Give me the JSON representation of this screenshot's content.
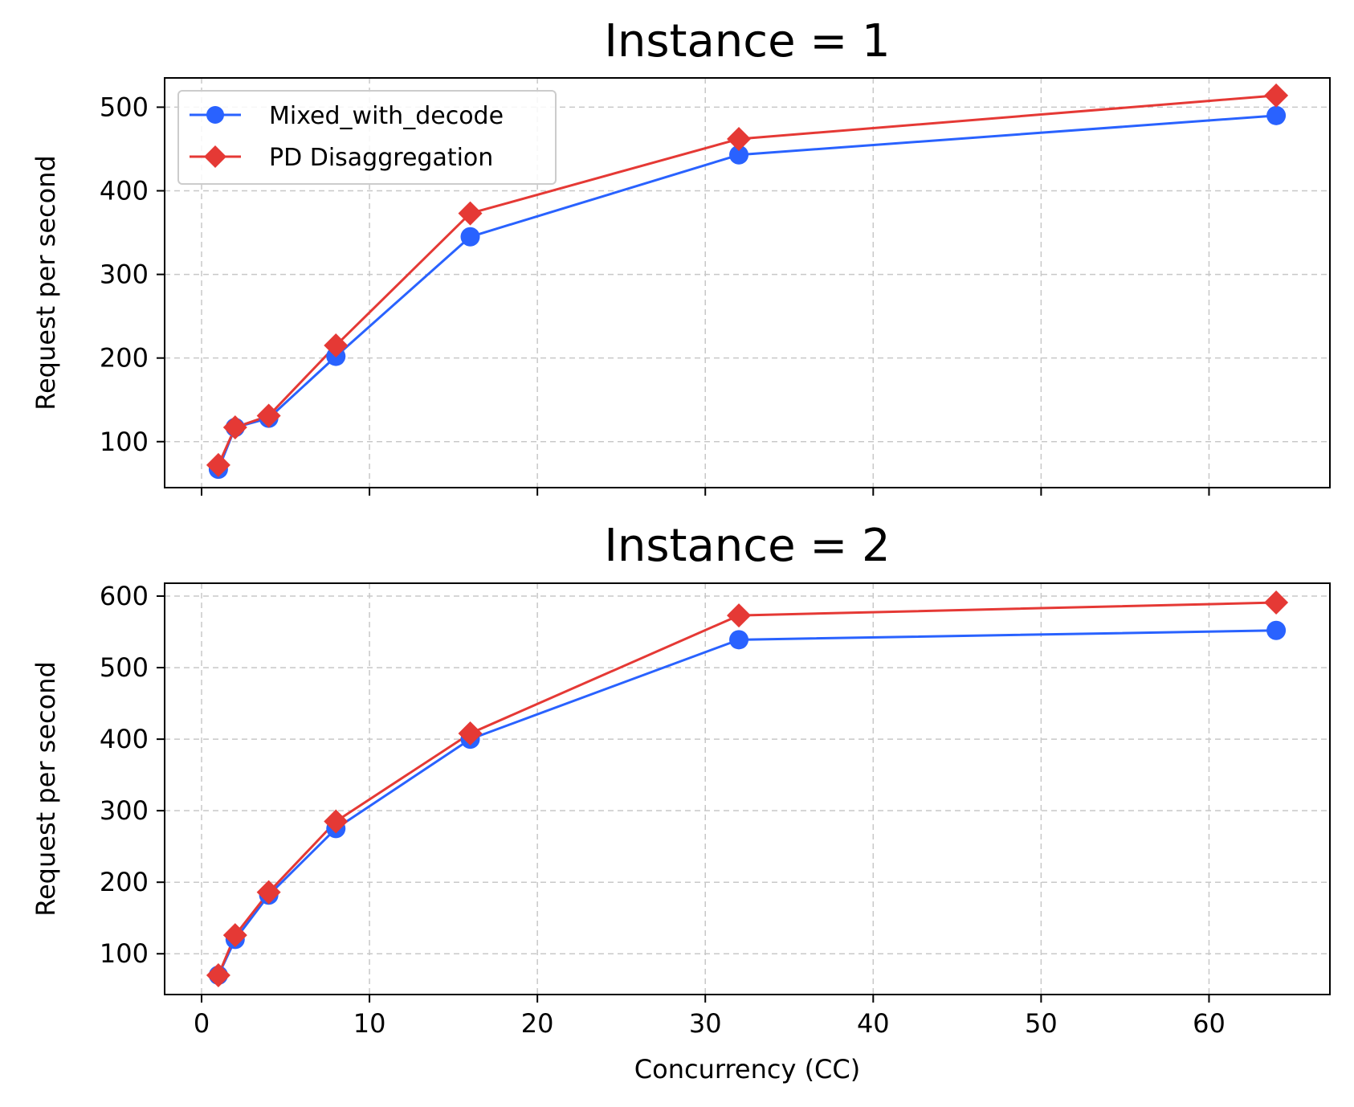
{
  "chart_data": [
    {
      "type": "line",
      "title": "Instance = 1",
      "xlabel": "",
      "ylabel": "Request per second",
      "xlim": [
        -2.2,
        67.2
      ],
      "ylim": [
        45,
        535
      ],
      "xticks": [
        0,
        10,
        20,
        30,
        40,
        50,
        60
      ],
      "xtick_labels_visible": false,
      "yticks": [
        100,
        200,
        300,
        400,
        500
      ],
      "grid": true,
      "legend": "upper-left",
      "x": [
        1,
        2,
        4,
        8,
        16,
        32,
        64
      ],
      "series": [
        {
          "name": "Mixed_with_decode",
          "color": "#2962ff",
          "marker": "circle",
          "values": [
            67,
            117,
            128,
            202,
            345,
            443,
            490
          ]
        },
        {
          "name": "PD Disaggregation",
          "color": "#e53935",
          "marker": "diamond",
          "values": [
            72,
            117,
            131,
            215,
            373,
            462,
            514
          ]
        }
      ]
    },
    {
      "type": "line",
      "title": "Instance = 2",
      "xlabel": "Concurrency (CC)",
      "ylabel": "Request per second",
      "xlim": [
        -2.2,
        67.2
      ],
      "ylim": [
        43,
        618
      ],
      "xticks": [
        0,
        10,
        20,
        30,
        40,
        50,
        60
      ],
      "xtick_labels_visible": true,
      "yticks": [
        100,
        200,
        300,
        400,
        500,
        600
      ],
      "grid": true,
      "legend": "none",
      "x": [
        1,
        2,
        4,
        8,
        16,
        32,
        64
      ],
      "series": [
        {
          "name": "Mixed_with_decode",
          "color": "#2962ff",
          "marker": "circle",
          "values": [
            70,
            120,
            182,
            275,
            400,
            539,
            552
          ]
        },
        {
          "name": "PD Disaggregation",
          "color": "#e53935",
          "marker": "diamond",
          "values": [
            70,
            126,
            186,
            285,
            408,
            573,
            591
          ]
        }
      ]
    }
  ]
}
